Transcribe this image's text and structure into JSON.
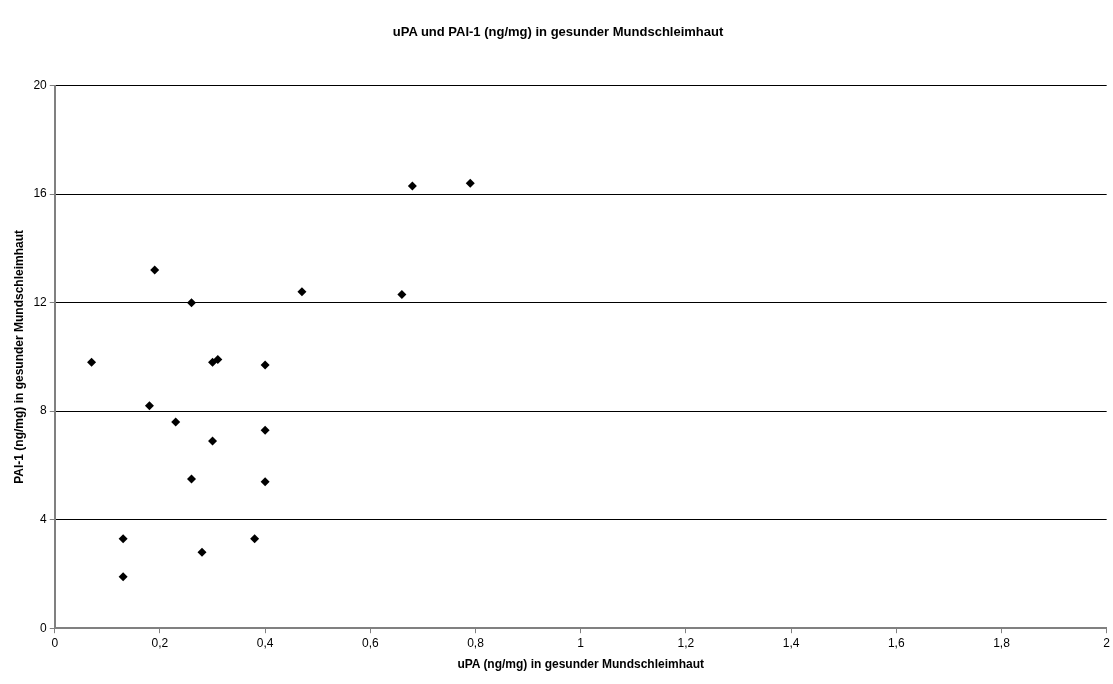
{
  "chart_data": {
    "type": "scatter",
    "title": "uPA und PAI-1 (ng/mg) in gesunder Mundschleimhaut",
    "xlabel": "uPA (ng/mg) in gesunder Mundschleimhaut",
    "ylabel": "PAI-1 (ng/mg) in gesunder Mundschleimhaut",
    "x": [
      0.07,
      0.19,
      0.26,
      0.47,
      0.66,
      0.68,
      0.79,
      0.3,
      0.31,
      0.4,
      0.18,
      0.23,
      0.3,
      0.4,
      0.26,
      0.4,
      0.13,
      0.13,
      0.28,
      0.38
    ],
    "values": [
      9.8,
      13.2,
      12.0,
      12.4,
      12.3,
      16.3,
      16.4,
      9.8,
      9.9,
      9.7,
      8.2,
      7.6,
      6.9,
      7.3,
      5.5,
      5.4,
      3.3,
      1.9,
      2.8,
      3.3
    ],
    "color": "#000000",
    "marker": "diamond",
    "xlim": [
      0,
      2
    ],
    "xticks": [
      0,
      {
        "value": 0.2,
        "label": "0,2"
      },
      {
        "value": 0.4,
        "label": "0,4"
      },
      {
        "value": 0.6,
        "label": "0,6"
      },
      {
        "value": 0.8,
        "label": "0,8"
      },
      1,
      {
        "value": 1.2,
        "label": "1,2"
      },
      {
        "value": 1.4,
        "label": "1,4"
      },
      {
        "value": 1.6,
        "label": "1,6"
      },
      {
        "value": 1.8,
        "label": "1,8"
      },
      2
    ],
    "ylim": [
      0,
      20
    ],
    "yticks": [
      0,
      4,
      8,
      12,
      16,
      20
    ],
    "grid": "y",
    "legend": false
  }
}
